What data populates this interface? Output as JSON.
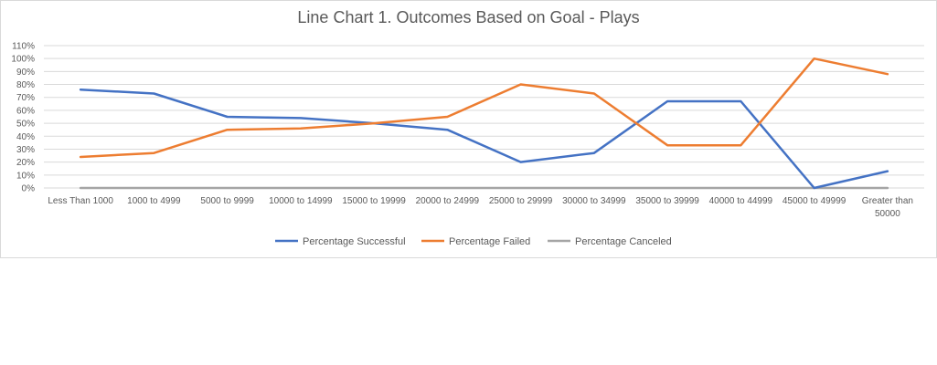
{
  "chart_data": {
    "type": "line",
    "title": "Line Chart 1. Outcomes Based on Goal - Plays",
    "xlabel": "",
    "ylabel": "",
    "ylim": [
      0,
      1.1
    ],
    "yticks": [
      0,
      0.1,
      0.2,
      0.3,
      0.4,
      0.5,
      0.6,
      0.7,
      0.8,
      0.9,
      1.0,
      1.1
    ],
    "ytick_labels": [
      "0%",
      "10%",
      "20%",
      "30%",
      "40%",
      "50%",
      "60%",
      "70%",
      "80%",
      "90%",
      "100%",
      "110%"
    ],
    "grid": true,
    "legend_position": "bottom",
    "categories": [
      "Less Than 1000",
      "1000 to 4999",
      "5000 to 9999",
      "10000 to 14999",
      "15000 to 19999",
      "20000 to 24999",
      "25000 to 29999",
      "30000 to 34999",
      "35000 to 39999",
      "40000 to 44999",
      "45000 to 49999",
      [
        "Greater than",
        "50000"
      ]
    ],
    "series": [
      {
        "name": "Percentage Successful",
        "color": "#4472c4",
        "values": [
          0.76,
          0.73,
          0.55,
          0.54,
          0.5,
          0.45,
          0.2,
          0.27,
          0.67,
          0.67,
          0.0,
          0.13
        ]
      },
      {
        "name": "Percentage Failed",
        "color": "#ed7d31",
        "values": [
          0.24,
          0.27,
          0.45,
          0.46,
          0.5,
          0.55,
          0.8,
          0.73,
          0.33,
          0.33,
          1.0,
          0.88
        ]
      },
      {
        "name": "Percentage Canceled",
        "color": "#a5a5a5",
        "values": [
          0,
          0,
          0,
          0,
          0,
          0,
          0,
          0,
          0,
          0,
          0,
          0
        ]
      }
    ]
  }
}
